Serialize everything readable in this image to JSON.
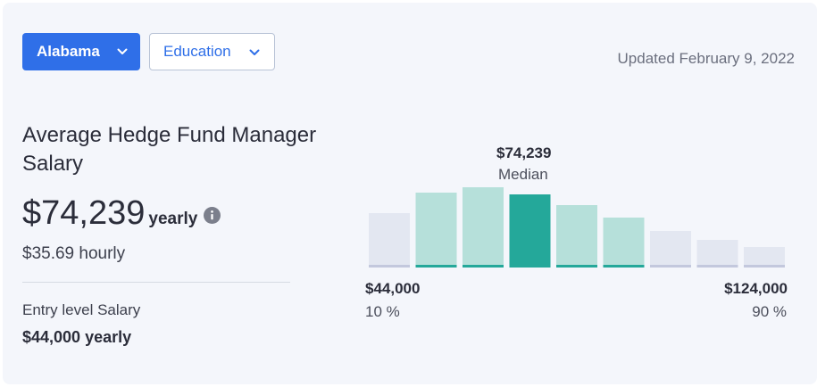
{
  "filters": {
    "location": {
      "label": "Alabama",
      "icon": "chevron-down-icon"
    },
    "education": {
      "label": "Education",
      "icon": "chevron-down-icon"
    }
  },
  "updated": "Updated February 9, 2022",
  "title": "Average Hedge Fund Manager Salary",
  "salary": {
    "value": "$74,239",
    "unit": "yearly",
    "info_icon": "info-icon",
    "hourly": "$35.69 hourly"
  },
  "entry": {
    "label": "Entry level Salary",
    "value": "$44,000 yearly"
  },
  "colors": {
    "primary": "#2f6fe8",
    "median_bar": "#24a89a",
    "mid_bar": "#b6e0da",
    "outer_bar": "#e3e7f1",
    "mid_base": "#24a89a",
    "outer_base": "#c3c8dd"
  },
  "chart_data": {
    "type": "bar",
    "median_value": "$74,239",
    "median_label": "Median",
    "bars": [
      {
        "level": 0.6,
        "kind": "outer"
      },
      {
        "level": 0.83,
        "kind": "mid"
      },
      {
        "level": 0.89,
        "kind": "mid"
      },
      {
        "level": 0.81,
        "kind": "median"
      },
      {
        "level": 0.69,
        "kind": "mid"
      },
      {
        "level": 0.55,
        "kind": "mid"
      },
      {
        "level": 0.4,
        "kind": "outer"
      },
      {
        "level": 0.3,
        "kind": "outer"
      },
      {
        "level": 0.22,
        "kind": "outer"
      }
    ],
    "low": {
      "value": "$44,000",
      "percentile": "10 %"
    },
    "high": {
      "value": "$124,000",
      "percentile": "90 %"
    }
  }
}
